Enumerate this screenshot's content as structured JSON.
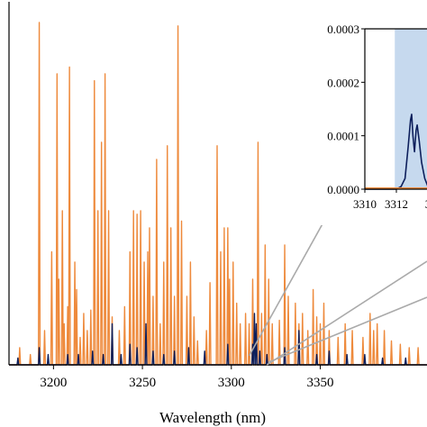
{
  "chart_data": [
    {
      "type": "line",
      "title": "",
      "xlabel": "Wavelength (nm)",
      "ylabel": "",
      "xlim": [
        3175,
        3410
      ],
      "ylim": [
        0,
        1
      ],
      "x_ticks": [
        "3200",
        "3250",
        "3300",
        "3350"
      ],
      "grid": false,
      "legend": "none",
      "series": [
        {
          "color": "#ee8a3c",
          "peaks": [
            [
              3181,
              0.05
            ],
            [
              3187,
              0.03
            ],
            [
              3192,
              1.0
            ],
            [
              3195,
              0.1
            ],
            [
              3199,
              0.33
            ],
            [
              3202,
              0.85
            ],
            [
              3203,
              0.25
            ],
            [
              3205,
              0.45
            ],
            [
              3206,
              0.12
            ],
            [
              3208,
              0.17
            ],
            [
              3209,
              0.87
            ],
            [
              3212,
              0.3
            ],
            [
              3213,
              0.22
            ],
            [
              3215,
              0.08
            ],
            [
              3217,
              0.15
            ],
            [
              3219,
              0.1
            ],
            [
              3221,
              0.16
            ],
            [
              3223,
              0.83
            ],
            [
              3225,
              0.45
            ],
            [
              3227,
              0.65
            ],
            [
              3229,
              0.85
            ],
            [
              3231,
              0.45
            ],
            [
              3233,
              0.14
            ],
            [
              3237,
              0.1
            ],
            [
              3240,
              0.17
            ],
            [
              3243,
              0.33
            ],
            [
              3245,
              0.45
            ],
            [
              3247,
              0.44
            ],
            [
              3249,
              0.45
            ],
            [
              3251,
              0.3
            ],
            [
              3253,
              0.33
            ],
            [
              3254,
              0.4
            ],
            [
              3256,
              0.2
            ],
            [
              3258,
              0.6
            ],
            [
              3260,
              0.12
            ],
            [
              3262,
              0.3
            ],
            [
              3264,
              0.64
            ],
            [
              3266,
              0.4
            ],
            [
              3268,
              0.2
            ],
            [
              3270,
              0.99
            ],
            [
              3272,
              0.42
            ],
            [
              3275,
              0.2
            ],
            [
              3277,
              0.3
            ],
            [
              3279,
              0.14
            ],
            [
              3281,
              0.07
            ],
            [
              3286,
              0.1
            ],
            [
              3288,
              0.24
            ],
            [
              3292,
              0.64
            ],
            [
              3294,
              0.33
            ],
            [
              3296,
              0.4
            ],
            [
              3298,
              0.4
            ],
            [
              3299,
              0.25
            ],
            [
              3301,
              0.3
            ],
            [
              3303,
              0.18
            ],
            [
              3305,
              0.12
            ],
            [
              3308,
              0.15
            ],
            [
              3310,
              0.12
            ],
            [
              3312,
              0.25
            ],
            [
              3315,
              0.65
            ],
            [
              3317,
              0.15
            ],
            [
              3319,
              0.35
            ],
            [
              3321,
              0.25
            ],
            [
              3323,
              0.12
            ],
            [
              3327,
              0.13
            ],
            [
              3330,
              0.35
            ],
            [
              3332,
              0.2
            ],
            [
              3336,
              0.18
            ],
            [
              3338,
              0.12
            ],
            [
              3340,
              0.15
            ],
            [
              3343,
              0.1
            ],
            [
              3346,
              0.22
            ],
            [
              3348,
              0.14
            ],
            [
              3350,
              0.12
            ],
            [
              3352,
              0.18
            ],
            [
              3355,
              0.1
            ],
            [
              3360,
              0.08
            ],
            [
              3364,
              0.12
            ],
            [
              3368,
              0.1
            ],
            [
              3374,
              0.08
            ],
            [
              3378,
              0.15
            ],
            [
              3380,
              0.1
            ],
            [
              3382,
              0.12
            ],
            [
              3386,
              0.1
            ],
            [
              3390,
              0.07
            ],
            [
              3395,
              0.06
            ],
            [
              3400,
              0.05
            ],
            [
              3405,
              0.05
            ]
          ]
        },
        {
          "color": "#0d1f5c",
          "peaks": [
            [
              3180,
              0.02
            ],
            [
              3192,
              0.05
            ],
            [
              3197,
              0.03
            ],
            [
              3208,
              0.03
            ],
            [
              3214,
              0.03
            ],
            [
              3222,
              0.04
            ],
            [
              3228,
              0.03
            ],
            [
              3233,
              0.12
            ],
            [
              3238,
              0.03
            ],
            [
              3243,
              0.06
            ],
            [
              3247,
              0.05
            ],
            [
              3252,
              0.12
            ],
            [
              3256,
              0.04
            ],
            [
              3262,
              0.03
            ],
            [
              3268,
              0.04
            ],
            [
              3276,
              0.05
            ],
            [
              3285,
              0.04
            ],
            [
              3298,
              0.06
            ],
            [
              3312,
              0.06
            ],
            [
              3313,
              0.15
            ],
            [
              3314,
              0.12
            ],
            [
              3316,
              0.04
            ],
            [
              3320,
              0.03
            ],
            [
              3330,
              0.05
            ],
            [
              3338,
              0.1
            ],
            [
              3348,
              0.03
            ],
            [
              3355,
              0.04
            ],
            [
              3365,
              0.03
            ],
            [
              3375,
              0.03
            ],
            [
              3385,
              0.02
            ],
            [
              3398,
              0.02
            ]
          ]
        }
      ],
      "highlight_color": "#c6d9ee",
      "zoom_region": [
        3310,
        3320
      ]
    },
    {
      "type": "line",
      "title": "",
      "xlabel": "",
      "ylabel": "",
      "xlim": [
        3310,
        3316
      ],
      "ylim": [
        0,
        0.0003
      ],
      "x_ticks": [
        "3310",
        "3312",
        "3"
      ],
      "y_ticks": [
        "0.0000",
        "0.0001",
        "0.0002",
        "0.0003"
      ],
      "highlight_xrange": [
        3311.9,
        3316
      ],
      "highlight_color": "#c6d9ee",
      "series": [
        {
          "color": "#0d1f5c",
          "points": [
            [
              3310.0,
              0.0
            ],
            [
              3311.5,
              0.0
            ],
            [
              3312.0,
              0.0
            ],
            [
              3312.3,
              5e-06
            ],
            [
              3312.55,
              2e-05
            ],
            [
              3312.75,
              8e-05
            ],
            [
              3312.9,
              0.00013
            ],
            [
              3312.97,
              0.00014
            ],
            [
              3313.05,
              0.0001
            ],
            [
              3313.15,
              7e-05
            ],
            [
              3313.25,
              0.00011
            ],
            [
              3313.32,
              0.00012
            ],
            [
              3313.45,
              9e-05
            ],
            [
              3313.6,
              5e-05
            ],
            [
              3313.8,
              2e-05
            ],
            [
              3314.0,
              5e-06
            ],
            [
              3316.0,
              0.0
            ]
          ]
        },
        {
          "color": "#ee8a3c",
          "points": [
            [
              3310.0,
              2e-06
            ],
            [
              3316.0,
              2e-06
            ]
          ]
        }
      ]
    }
  ]
}
